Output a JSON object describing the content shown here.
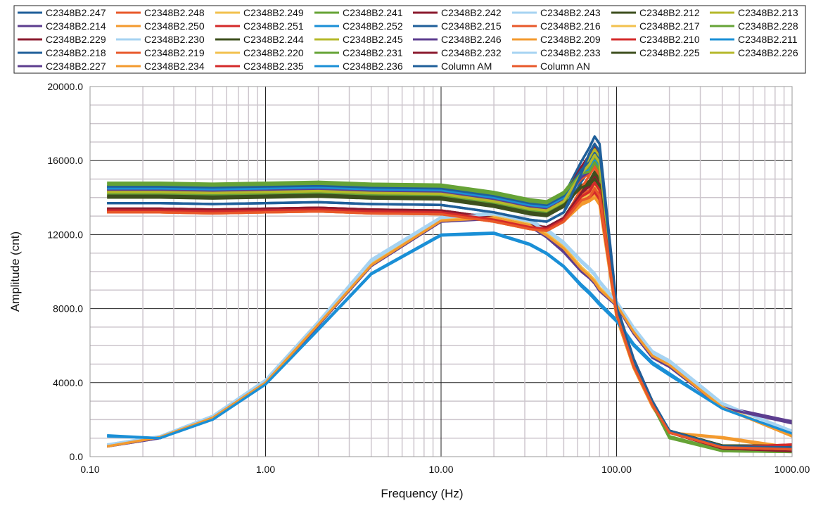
{
  "chart_data": {
    "type": "line",
    "title": "",
    "xlabel": "Frequency (Hz)",
    "ylabel": "Amplitude (cnt)",
    "xscale": "log",
    "xlim": [
      0.1,
      1000
    ],
    "ylim": [
      0,
      20000
    ],
    "grid": true,
    "legend_position": "top",
    "x_tick_labels": [
      "0.10",
      "1.00",
      "10.00",
      "100.00",
      "1000.00"
    ],
    "x_ticks": [
      0.1,
      1,
      10,
      100,
      1000
    ],
    "y_tick_labels": [
      "0.0",
      "4000.0",
      "8000.0",
      "12000.0",
      "16000.0",
      "20000.0"
    ],
    "y_ticks": [
      0,
      4000,
      8000,
      12000,
      16000,
      20000
    ],
    "x": [
      0.125,
      0.25,
      0.5,
      1,
      2,
      4,
      10,
      20,
      32,
      40,
      50,
      63,
      70,
      75,
      80,
      100,
      125,
      160,
      200,
      400,
      1000
    ],
    "series": [
      {
        "name": "C2348B2.247",
        "color": "#1f5f9a",
        "values": [
          14600,
          14600,
          14550,
          14600,
          14650,
          14550,
          14500,
          14100,
          13700,
          13600,
          14100,
          15950,
          16700,
          17300,
          16900,
          8200,
          5300,
          3000,
          1400,
          550,
          450
        ]
      },
      {
        "name": "C2348B2.248",
        "color": "#e8582a",
        "values": [
          13300,
          13300,
          13250,
          13300,
          13350,
          13250,
          13200,
          12800,
          12400,
          12300,
          12800,
          14150,
          14400,
          15000,
          14500,
          7800,
          5000,
          2900,
          1300,
          500,
          400
        ]
      },
      {
        "name": "C2348B2.249",
        "color": "#f2c14e",
        "values": [
          600,
          1050,
          2150,
          4050,
          7200,
          10400,
          12800,
          13000,
          12600,
          12000,
          11300,
          10200,
          9800,
          9500,
          9100,
          8200,
          6800,
          5500,
          5000,
          2700,
          1100
        ]
      },
      {
        "name": "C2348B2.241",
        "color": "#66a336",
        "values": [
          14800,
          14800,
          14750,
          14800,
          14850,
          14750,
          14700,
          14300,
          13900,
          13800,
          14300,
          15500,
          15800,
          16200,
          15800,
          7900,
          5100,
          2800,
          1000,
          300,
          250
        ]
      },
      {
        "name": "C2348B2.242",
        "color": "#8b1a2e",
        "values": [
          14500,
          14500,
          14450,
          14500,
          14550,
          14450,
          14400,
          14000,
          13600,
          13500,
          14000,
          15650,
          16300,
          16800,
          16400,
          8100,
          5200,
          3000,
          1300,
          450,
          350
        ]
      },
      {
        "name": "C2348B2.243",
        "color": "#a6d3f2",
        "values": [
          650,
          1100,
          2200,
          4150,
          7300,
          10600,
          12900,
          13200,
          12800,
          12300,
          11600,
          10600,
          10200,
          9900,
          9500,
          8400,
          7000,
          5700,
          5200,
          2900,
          1300
        ]
      },
      {
        "name": "C2348B2.212",
        "color": "#3d4f1e",
        "values": [
          13400,
          13400,
          13350,
          13400,
          13450,
          13350,
          13300,
          12900,
          12500,
          12400,
          12900,
          14400,
          14900,
          15400,
          15000,
          7900,
          5000,
          2900,
          1400,
          600,
          600
        ]
      },
      {
        "name": "C2348B2.213",
        "color": "#b5b82a",
        "values": [
          14300,
          14300,
          14250,
          14300,
          14350,
          14250,
          14200,
          13800,
          13400,
          13300,
          13800,
          15400,
          16000,
          16500,
          16100,
          8000,
          5100,
          2950,
          1350,
          500,
          400
        ]
      },
      {
        "name": "C2348B2.214",
        "color": "#5c3d8f",
        "values": [
          550,
          1000,
          2100,
          4000,
          7100,
          10400,
          12800,
          12900,
          12500,
          11900,
          11100,
          10100,
          9700,
          9400,
          9000,
          8200,
          6700,
          5400,
          4900,
          2700,
          1900
        ]
      },
      {
        "name": "C2348B2.250",
        "color": "#f39a2e",
        "values": [
          13200,
          13200,
          13150,
          13200,
          13250,
          13150,
          13100,
          12700,
          12300,
          12200,
          12700,
          13600,
          13800,
          14000,
          13600,
          7500,
          4800,
          2700,
          1300,
          1000,
          400
        ]
      },
      {
        "name": "C2348B2.251",
        "color": "#d42a2a",
        "values": [
          13300,
          13300,
          13250,
          13300,
          13350,
          13250,
          13200,
          12800,
          12400,
          12300,
          12800,
          13850,
          14100,
          14400,
          14000,
          7700,
          4900,
          2800,
          1300,
          500,
          600
        ]
      },
      {
        "name": "C2348B2.252",
        "color": "#1a8fd6",
        "values": [
          1150,
          1000,
          2050,
          3950,
          6900,
          9900,
          12000,
          12100,
          11500,
          11000,
          10300,
          9300,
          8900,
          8600,
          8300,
          7400,
          6100,
          5100,
          4500,
          2600,
          1200
        ]
      },
      {
        "name": "C2348B2.215",
        "color": "#1f5f9a",
        "values": [
          13700,
          13700,
          13650,
          13700,
          13750,
          13650,
          13600,
          13200,
          12800,
          12700,
          13200,
          14850,
          15500,
          16000,
          15600,
          8000,
          5100,
          2950,
          1400,
          550,
          500
        ]
      },
      {
        "name": "C2348B2.216",
        "color": "#e8582a",
        "values": [
          14400,
          14400,
          14350,
          14400,
          14450,
          14350,
          14300,
          13900,
          13500,
          13400,
          13900,
          15000,
          15300,
          15600,
          15200,
          7800,
          5000,
          2900,
          1300,
          500,
          450
        ]
      },
      {
        "name": "C2348B2.217",
        "color": "#f2c14e",
        "values": [
          13200,
          13200,
          13150,
          13200,
          13250,
          13150,
          13100,
          12700,
          12300,
          12200,
          12700,
          13900,
          14200,
          14600,
          14200,
          7700,
          4900,
          2800,
          1300,
          500,
          450
        ]
      },
      {
        "name": "C2348B2.228",
        "color": "#66a336",
        "values": [
          14200,
          14200,
          14150,
          14200,
          14250,
          14150,
          14100,
          13700,
          13300,
          13200,
          13700,
          15150,
          15600,
          16100,
          15700,
          7900,
          5000,
          2900,
          1100,
          350,
          300
        ]
      },
      {
        "name": "C2348B2.229",
        "color": "#8b1a2e",
        "values": [
          13300,
          13300,
          13250,
          13300,
          13350,
          13250,
          13200,
          12800,
          12400,
          12300,
          12800,
          14250,
          14700,
          15200,
          14800,
          7800,
          5000,
          2900,
          1300,
          450,
          300
        ]
      },
      {
        "name": "C2348B2.230",
        "color": "#a6d3f2",
        "values": [
          600,
          1100,
          2200,
          4150,
          7300,
          10650,
          12950,
          13150,
          12750,
          12250,
          11550,
          10550,
          10150,
          9850,
          9450,
          8350,
          6950,
          5650,
          5100,
          2850,
          1400
        ]
      },
      {
        "name": "C2348B2.244",
        "color": "#3d4f1e",
        "values": [
          14000,
          14000,
          13950,
          14000,
          14050,
          13950,
          13900,
          13500,
          13100,
          13000,
          13500,
          14650,
          14900,
          15300,
          14900,
          7800,
          5000,
          2900,
          1400,
          600,
          550
        ]
      },
      {
        "name": "C2348B2.245",
        "color": "#b5b82a",
        "values": [
          14300,
          14300,
          14250,
          14300,
          14350,
          14250,
          14200,
          13800,
          13400,
          13300,
          13800,
          15450,
          16100,
          16600,
          16200,
          8000,
          5100,
          3000,
          1350,
          500,
          400
        ]
      },
      {
        "name": "C2348B2.246",
        "color": "#5c3d8f",
        "values": [
          14400,
          14400,
          14350,
          14400,
          14450,
          14350,
          14300,
          13900,
          13500,
          13400,
          13900,
          15100,
          15400,
          15800,
          15400,
          7900,
          5000,
          2900,
          1350,
          500,
          450
        ]
      },
      {
        "name": "C2348B2.209",
        "color": "#f39a2e",
        "values": [
          13200,
          13200,
          13150,
          13200,
          13250,
          13150,
          13100,
          12700,
          12300,
          12200,
          12700,
          13700,
          13900,
          14200,
          13800,
          7600,
          4800,
          2700,
          1300,
          1050,
          500
        ]
      },
      {
        "name": "C2348B2.210",
        "color": "#d42a2a",
        "values": [
          13400,
          13400,
          13350,
          13400,
          13450,
          13350,
          13300,
          12900,
          12500,
          12400,
          12900,
          13850,
          14000,
          14300,
          13900,
          7700,
          4900,
          2800,
          1300,
          500,
          650
        ]
      },
      {
        "name": "C2348B2.211",
        "color": "#1a8fd6",
        "values": [
          14500,
          14500,
          14450,
          14500,
          14550,
          14450,
          14400,
          14000,
          13600,
          13500,
          14000,
          15250,
          15500,
          16000,
          15600,
          7900,
          5000,
          2900,
          1350,
          500,
          450
        ]
      },
      {
        "name": "C2348B2.218",
        "color": "#1f5f9a",
        "values": [
          14600,
          14600,
          14550,
          14600,
          14650,
          14550,
          14500,
          14100,
          13700,
          13600,
          14100,
          15500,
          15900,
          16400,
          16000,
          8000,
          5100,
          2950,
          1400,
          600,
          550
        ]
      },
      {
        "name": "C2348B2.219",
        "color": "#e8582a",
        "values": [
          13300,
          13300,
          13250,
          13300,
          13350,
          13250,
          13200,
          12800,
          12400,
          12300,
          12800,
          14500,
          15200,
          15700,
          15300,
          7900,
          5000,
          2900,
          1300,
          450,
          350
        ]
      },
      {
        "name": "C2348B2.220",
        "color": "#f2c14e",
        "values": [
          550,
          1050,
          2150,
          4050,
          7200,
          10450,
          12850,
          13000,
          12600,
          12050,
          11350,
          10250,
          9850,
          9550,
          9150,
          8250,
          6800,
          5500,
          5050,
          2700,
          1150
        ]
      },
      {
        "name": "C2348B2.231",
        "color": "#66a336",
        "values": [
          14700,
          14700,
          14650,
          14700,
          14750,
          14650,
          14600,
          14200,
          13800,
          13700,
          14200,
          15300,
          15400,
          15900,
          15500,
          7800,
          5000,
          2800,
          1050,
          300,
          250
        ]
      },
      {
        "name": "C2348B2.232",
        "color": "#8b1a2e",
        "values": [
          13400,
          13400,
          13350,
          13400,
          13450,
          13350,
          13300,
          12900,
          12500,
          12400,
          12900,
          14250,
          14600,
          15100,
          14700,
          7800,
          5000,
          2900,
          1300,
          450,
          300
        ]
      },
      {
        "name": "C2348B2.233",
        "color": "#a6d3f2",
        "values": [
          650,
          1100,
          2200,
          4100,
          7250,
          10550,
          12900,
          13100,
          12700,
          12200,
          11500,
          10500,
          10100,
          9800,
          9400,
          8300,
          6900,
          5600,
          5100,
          2850,
          1350
        ]
      },
      {
        "name": "C2348B2.225",
        "color": "#3d4f1e",
        "values": [
          14100,
          14100,
          14050,
          14100,
          14150,
          14050,
          14000,
          13600,
          13200,
          13100,
          13600,
          14550,
          14700,
          15000,
          14600,
          7700,
          4900,
          2850,
          1400,
          600,
          600
        ]
      },
      {
        "name": "C2348B2.226",
        "color": "#b5b82a",
        "values": [
          14300,
          14300,
          14250,
          14300,
          14350,
          14250,
          14200,
          13800,
          13400,
          13300,
          13800,
          15300,
          15800,
          16300,
          15900,
          7900,
          5000,
          2950,
          1350,
          500,
          400
        ]
      },
      {
        "name": "C2348B2.227",
        "color": "#5c3d8f",
        "values": [
          550,
          1000,
          2100,
          4000,
          7100,
          10300,
          12700,
          12850,
          12450,
          11850,
          11050,
          10000,
          9650,
          9350,
          8950,
          8150,
          6650,
          5350,
          4850,
          2650,
          1800
        ]
      },
      {
        "name": "C2348B2.234",
        "color": "#f39a2e",
        "values": [
          550,
          1050,
          2100,
          4000,
          7150,
          10350,
          12750,
          12900,
          12500,
          11950,
          11250,
          10150,
          9750,
          9450,
          9050,
          8200,
          6750,
          5450,
          4950,
          2650,
          1100
        ]
      },
      {
        "name": "C2348B2.235",
        "color": "#d42a2a",
        "values": [
          13300,
          13300,
          13250,
          13300,
          13350,
          13250,
          13200,
          12800,
          12400,
          12300,
          12800,
          14050,
          14300,
          14800,
          14400,
          7700,
          4900,
          2800,
          1300,
          500,
          650
        ]
      },
      {
        "name": "C2348B2.236",
        "color": "#1a8fd6",
        "values": [
          1100,
          1000,
          2000,
          3900,
          6850,
          9850,
          11950,
          12050,
          11450,
          10950,
          10250,
          9200,
          8800,
          8500,
          8200,
          7300,
          6000,
          5000,
          4400,
          2600,
          1250
        ]
      },
      {
        "name": "Column AM",
        "color": "#1f5f9a",
        "values": [
          13700,
          13700,
          13650,
          13700,
          13750,
          13650,
          13600,
          13200,
          12800,
          12700,
          13200,
          15300,
          16400,
          16900,
          16500,
          8100,
          5200,
          3000,
          1400,
          550,
          500
        ]
      },
      {
        "name": "Column AN",
        "color": "#e8582a",
        "values": [
          13200,
          13200,
          13150,
          13200,
          13250,
          13150,
          13100,
          12700,
          12300,
          12200,
          12700,
          13850,
          14000,
          14500,
          14100,
          7700,
          4900,
          2800,
          1300,
          500,
          400
        ]
      }
    ]
  }
}
